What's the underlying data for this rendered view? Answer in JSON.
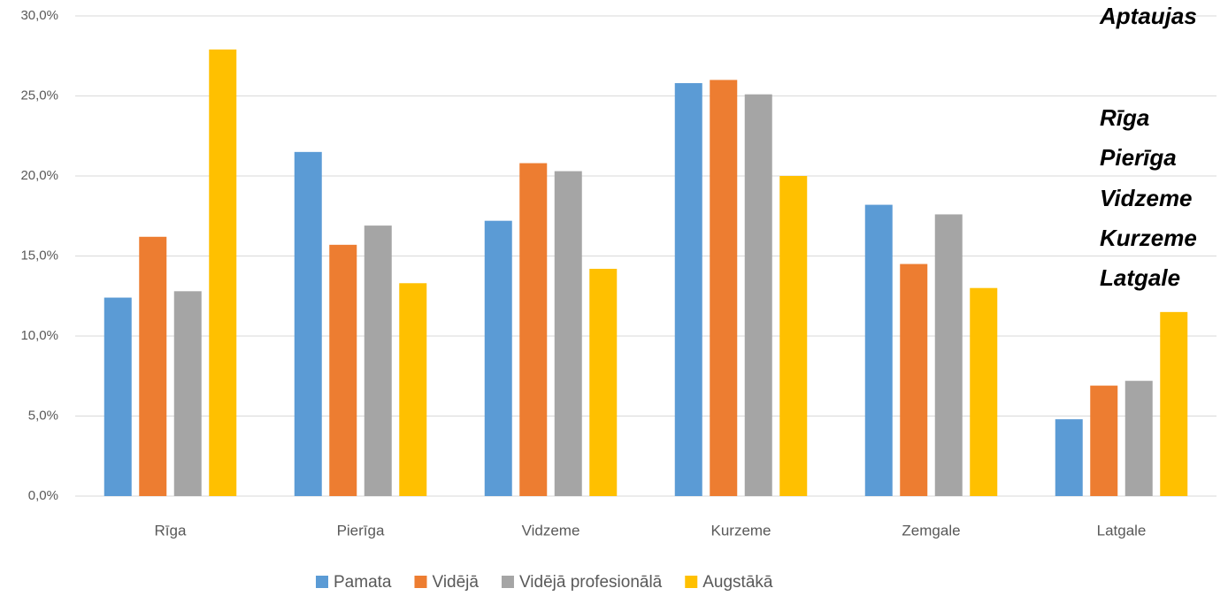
{
  "chart_data": {
    "type": "bar",
    "categories": [
      "Rīga",
      "Pierīga",
      "Vidzeme",
      "Kurzeme",
      "Zemgale",
      "Latgale"
    ],
    "series": [
      {
        "name": "Pamata",
        "color": "#5b9bd5",
        "values": [
          12.4,
          21.5,
          17.2,
          25.8,
          18.2,
          4.8
        ]
      },
      {
        "name": "Vidējā",
        "color": "#ed7d31",
        "values": [
          16.2,
          15.7,
          20.8,
          26.0,
          14.5,
          6.9
        ]
      },
      {
        "name": "Vidējā profesionālā",
        "color": "#a5a5a5",
        "values": [
          12.8,
          16.9,
          20.3,
          25.1,
          17.6,
          7.2
        ]
      },
      {
        "name": "Augstākā",
        "color": "#ffc000",
        "values": [
          27.9,
          13.3,
          14.2,
          20.0,
          13.0,
          11.5
        ]
      }
    ],
    "ylim": [
      0,
      30
    ],
    "yticks": [
      {
        "value": 0,
        "label": "0,0%"
      },
      {
        "value": 5,
        "label": "5,0%"
      },
      {
        "value": 10,
        "label": "10,0%"
      },
      {
        "value": 15,
        "label": "15,0%"
      },
      {
        "value": 20,
        "label": "20,0%"
      },
      {
        "value": 25,
        "label": "25,0%"
      },
      {
        "value": 30,
        "label": "30,0%"
      }
    ],
    "grid": true,
    "legend": "bottom",
    "annotations": [
      "Aptaujas",
      "Rīga",
      "Pierīga",
      "Vidzeme",
      "Kurzeme",
      "Latgale"
    ]
  }
}
